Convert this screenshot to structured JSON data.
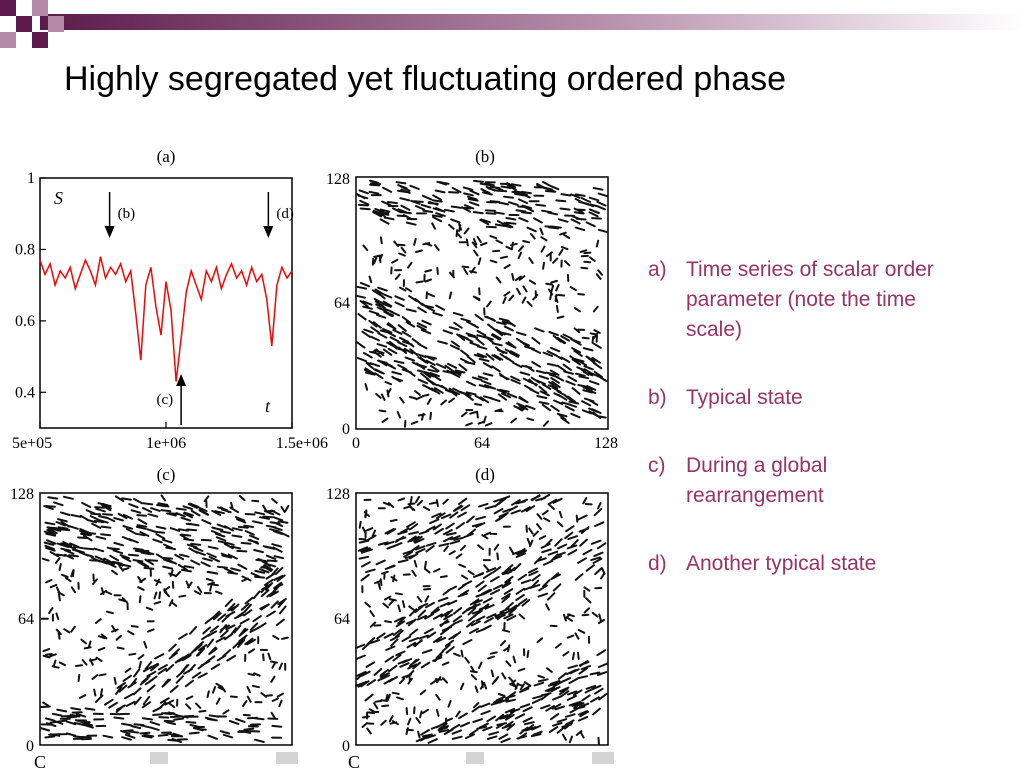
{
  "slide": {
    "title": "Highly segregated yet fluctuating ordered phase",
    "accent_color": "#993366",
    "decor_color": "#5b1a4b"
  },
  "bullets": [
    {
      "marker": "a)",
      "text": "Time series of scalar order parameter (note the time scale)"
    },
    {
      "marker": "b)",
      "text": "Typical state"
    },
    {
      "marker": "c)",
      "text": "During a global rearrangement"
    },
    {
      "marker": "d)",
      "text": "Another typical state"
    }
  ],
  "figure": {
    "panels": [
      {
        "id": "a",
        "label": "(a)"
      },
      {
        "id": "b",
        "label": "(b)"
      },
      {
        "id": "c",
        "label": "(c)"
      },
      {
        "id": "d",
        "label": "(d)"
      }
    ],
    "snapshot_ticks": [
      "0",
      "64",
      "128"
    ],
    "arrow_labels": {
      "b": "(b)",
      "c": "(c)",
      "d": "(d)"
    },
    "footer_fragments": [
      "C",
      "C"
    ]
  },
  "chart_data": {
    "type": "line",
    "title": "(a)",
    "ylabel": "S",
    "xlabel": "t",
    "x_ticks": [
      "5e+05",
      "1e+06",
      "1.5e+06"
    ],
    "y_ticks": [
      "0.4",
      "0.6",
      "0.8",
      "1"
    ],
    "xlim": [
      500000,
      1500000
    ],
    "ylim": [
      0.3,
      1.0
    ],
    "series": [
      {
        "color": "#ff0000",
        "x": [
          500000,
          520000,
          540000,
          560000,
          580000,
          600000,
          620000,
          640000,
          660000,
          680000,
          700000,
          720000,
          740000,
          760000,
          780000,
          800000,
          820000,
          840000,
          860000,
          880000,
          900000,
          920000,
          940000,
          960000,
          980000,
          1000000,
          1020000,
          1040000,
          1060000,
          1080000,
          1100000,
          1120000,
          1140000,
          1160000,
          1180000,
          1200000,
          1220000,
          1240000,
          1260000,
          1280000,
          1300000,
          1320000,
          1340000,
          1360000,
          1380000,
          1400000,
          1420000,
          1440000,
          1460000,
          1480000,
          1500000
        ],
        "y": [
          0.77,
          0.73,
          0.76,
          0.7,
          0.74,
          0.72,
          0.75,
          0.69,
          0.73,
          0.77,
          0.74,
          0.7,
          0.78,
          0.72,
          0.75,
          0.73,
          0.76,
          0.71,
          0.74,
          0.62,
          0.49,
          0.7,
          0.75,
          0.64,
          0.56,
          0.71,
          0.63,
          0.43,
          0.55,
          0.68,
          0.74,
          0.7,
          0.66,
          0.74,
          0.71,
          0.75,
          0.69,
          0.73,
          0.76,
          0.72,
          0.74,
          0.7,
          0.75,
          0.71,
          0.73,
          0.66,
          0.53,
          0.7,
          0.75,
          0.72,
          0.74
        ]
      }
    ],
    "annotations": [
      {
        "text": "(b)",
        "x": 800000,
        "arrow": "down"
      },
      {
        "text": "(c)",
        "x": 1060000,
        "arrow": "up"
      },
      {
        "text": "(d)",
        "x": 1430000,
        "arrow": "down"
      }
    ],
    "grid": false,
    "legend": "none"
  }
}
